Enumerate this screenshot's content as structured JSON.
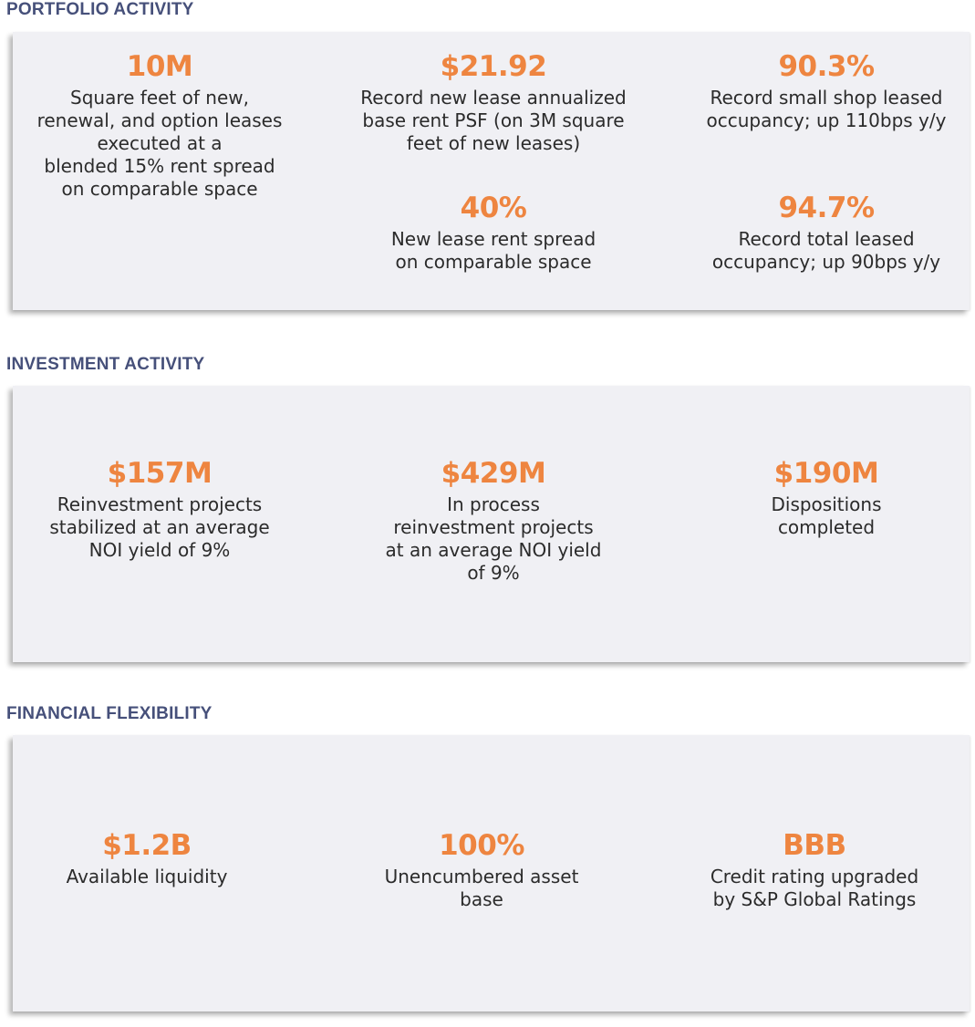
{
  "colors": {
    "heading": "#46507a",
    "accent": "#ee8540",
    "panel": "#f0f0f4",
    "text": "#2b2b2b"
  },
  "portfolio": {
    "title": "PORTFOLIO ACTIVITY",
    "stats": [
      {
        "value": "10M",
        "lines": [
          "Square feet of new,",
          "renewal, and option leases",
          "executed at a",
          "blended 15% rent spread",
          "on comparable space"
        ]
      },
      {
        "value": "$21.92",
        "lines": [
          "Record new lease annualized",
          "base rent PSF (on 3M square",
          "feet of new leases)"
        ]
      },
      {
        "value": "90.3%",
        "lines": [
          "Record small shop leased",
          "occupancy; up 110bps y/y"
        ]
      },
      {
        "value": "40%",
        "lines": [
          "New lease rent spread",
          "on comparable space"
        ]
      },
      {
        "value": "94.7%",
        "lines": [
          "Record total leased",
          "occupancy; up 90bps y/y"
        ]
      }
    ]
  },
  "investment": {
    "title": "INVESTMENT ACTIVITY",
    "stats": [
      {
        "value": "$157M",
        "lines": [
          "Reinvestment projects",
          "stabilized at an average",
          "NOI yield of 9%"
        ]
      },
      {
        "value": "$429M",
        "lines": [
          "In process",
          "reinvestment projects",
          "at an average NOI yield",
          "of 9%"
        ]
      },
      {
        "value": "$190M",
        "lines": [
          "Dispositions",
          "completed"
        ]
      }
    ]
  },
  "financial": {
    "title": "FINANCIAL FLEXIBILITY",
    "stats": [
      {
        "value": "$1.2B",
        "lines": [
          "Available liquidity"
        ]
      },
      {
        "value": "100%",
        "lines": [
          "Unencumbered asset",
          "base"
        ]
      },
      {
        "value": "BBB",
        "lines": [
          "Credit rating upgraded",
          "by S&P Global Ratings"
        ]
      }
    ]
  }
}
